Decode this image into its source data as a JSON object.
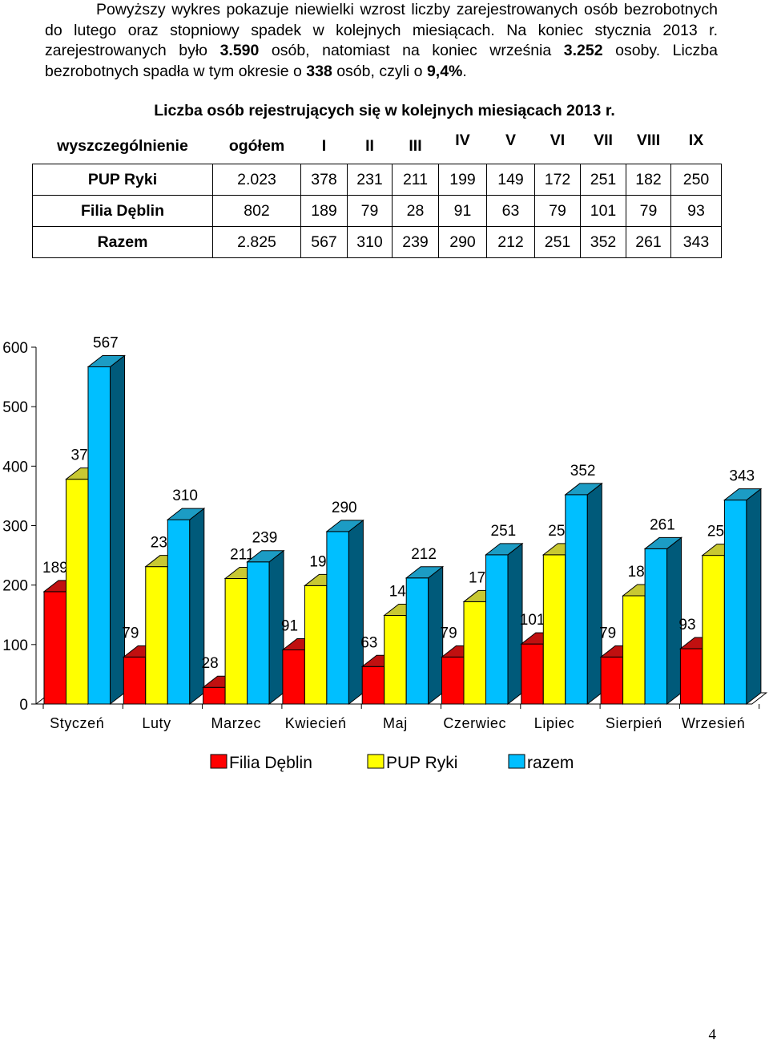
{
  "paragraph": {
    "t1": "Powyższy wykres pokazuje niewielki wzrost liczby zarejestrowanych osób bezrobotnych do lutego oraz stopniowy spadek w kolejnych miesiącach. Na koniec stycznia 2013 r. zarejestrowanych było ",
    "b1": "3.590",
    "t2": " osób, natomiast na koniec września ",
    "b2": "3.252",
    "t3": " osoby. Liczba bezrobotnych spadła w tym okresie o ",
    "b3": "338",
    "t4": " osób, czyli o ",
    "b4": "9,4%",
    "t5": "."
  },
  "table": {
    "title": "Liczba osób rejestrujących się w kolejnych miesiącach 2013 r.",
    "headers": [
      "wyszczególnienie",
      "ogółem",
      "I",
      "II",
      "III",
      "IV",
      "V",
      "VI",
      "VII",
      "VIII",
      "IX"
    ],
    "rows": [
      [
        "PUP Ryki",
        "2.023",
        "378",
        "231",
        "211",
        "199",
        "149",
        "172",
        "251",
        "182",
        "250"
      ],
      [
        "Filia Dęblin",
        "802",
        "189",
        "79",
        "28",
        "91",
        "63",
        "79",
        "101",
        "79",
        "93"
      ],
      [
        "Razem",
        "2.825",
        "567",
        "310",
        "239",
        "290",
        "212",
        "251",
        "352",
        "261",
        "343"
      ]
    ]
  },
  "chart_data": {
    "type": "bar",
    "categories": [
      "Styczeń",
      "Luty",
      "Marzec",
      "Kwiecień",
      "Maj",
      "Czerwiec",
      "Lipiec",
      "Sierpień",
      "Wrzesień"
    ],
    "series": [
      {
        "name": "Filia Dęblin",
        "values": [
          189,
          79,
          28,
          91,
          63,
          79,
          101,
          79,
          93
        ],
        "color": "#ff0000"
      },
      {
        "name": "PUP Ryki",
        "values": [
          378,
          231,
          211,
          199,
          149,
          172,
          251,
          182,
          250
        ],
        "color": "#ffff00"
      },
      {
        "name": "razem",
        "values": [
          567,
          310,
          239,
          290,
          212,
          251,
          352,
          261,
          343
        ],
        "color": "#00bfff"
      }
    ],
    "ylim": [
      0,
      600
    ],
    "yticks": [
      0,
      100,
      200,
      300,
      400,
      500,
      600
    ],
    "three_d": true,
    "grid": false,
    "legend": "bottom"
  },
  "page_number": "4"
}
